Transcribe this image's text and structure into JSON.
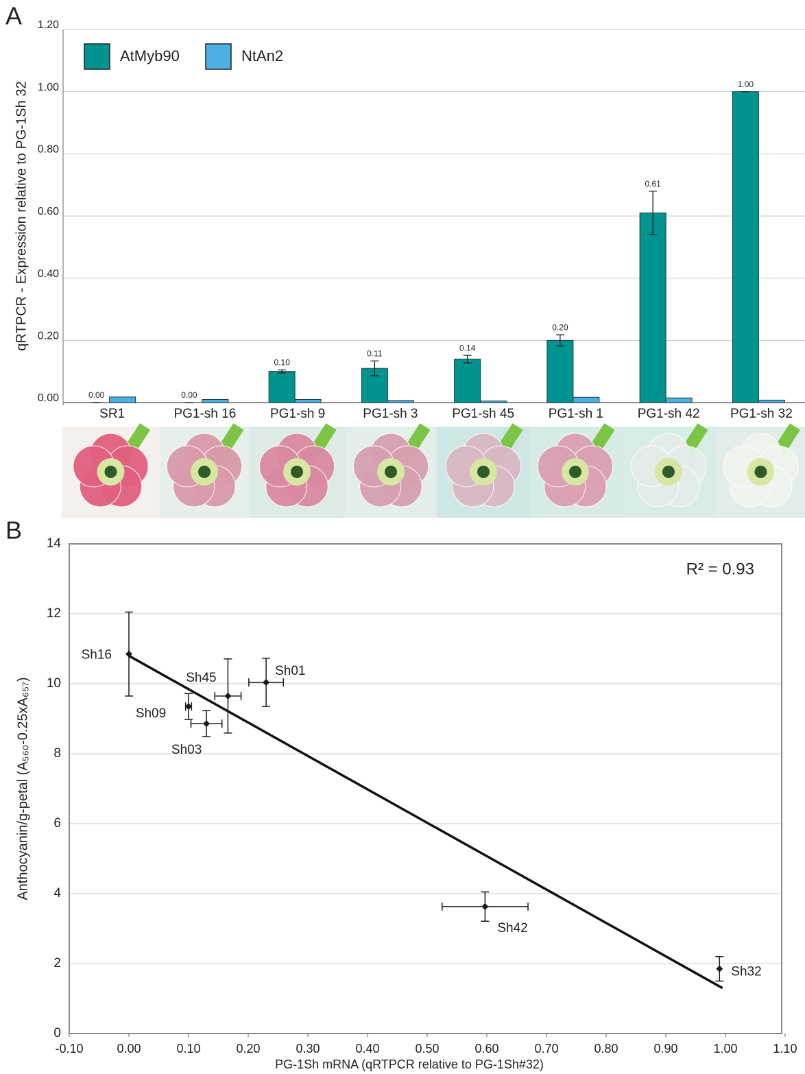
{
  "chart_data": [
    {
      "type": "bar",
      "label": "A",
      "ylabel": "qRTPCR - Expression relative to PG-1Sh 32",
      "categories": [
        "SR1",
        "PG1-sh 16",
        "PG1-sh 9",
        "PG1-sh 3",
        "PG1-sh 45",
        "PG1-sh 1",
        "PG1-sh 42",
        "PG1-sh 32"
      ],
      "series": [
        {
          "name": "AtMyb90",
          "color": "#00938f",
          "values": [
            0,
            0,
            0.1,
            0.11,
            0.14,
            0.2,
            0.61,
            1
          ],
          "value_labels": [
            "0.00",
            "0.00",
            "0.10",
            "0.11",
            "0.14",
            "0.20",
            "0.61",
            "1.00"
          ],
          "errors": [
            0,
            0,
            0.005,
            0.024,
            0.012,
            0.018,
            0.07,
            0
          ]
        },
        {
          "name": "NtAn2",
          "color": "#4db0e3",
          "values": [
            0.018,
            0.01,
            0.01,
            0.007,
            0.005,
            0.017,
            0.015,
            0.008
          ]
        }
      ],
      "ylim": [
        0,
        1.2
      ],
      "yticks": [
        {
          "value": 0,
          "label": "0.00"
        },
        {
          "value": 0.2,
          "label": "0.20"
        },
        {
          "value": 0.4,
          "label": "0.40"
        },
        {
          "value": 0.6,
          "label": "0.60"
        },
        {
          "value": 0.8,
          "label": "0.80"
        },
        {
          "value": 1,
          "label": "1.00"
        },
        {
          "value": 1.2,
          "label": "1.20"
        }
      ],
      "grid": true,
      "legend": "upper left"
    },
    {
      "type": "scatter",
      "label": "B",
      "xlabel": "PG-1Sh mRNA (qRTPCR relative to PG-1Sh#32)",
      "ylabel": "Anthocyanin/g-petal  (A₅₆₀-0.25xA₆₅₇)",
      "annotation": "R² = 0.93",
      "point_labels": [
        "Sh16",
        "Sh09",
        "Sh03",
        "Sh45",
        "Sh01",
        "Sh42",
        "Sh32"
      ],
      "x": [
        0,
        0.1,
        0.13,
        0.166,
        0.23,
        0.597,
        0.99
      ],
      "values": [
        10.85,
        9.35,
        8.86,
        9.65,
        10.04,
        3.63,
        1.85
      ],
      "x_errors": [
        0,
        0.005,
        0.026,
        0.022,
        0.029,
        0.072,
        0
      ],
      "errors": [
        1.2,
        0.37,
        0.37,
        1.06,
        0.69,
        0.42,
        0.35
      ],
      "color": "#1a1a1a",
      "trendline": {
        "x": [
          0,
          0.995
        ],
        "y": [
          10.8,
          1.3
        ]
      },
      "xlim": [
        -0.1,
        1.1
      ],
      "ylim": [
        0,
        14
      ],
      "xticks": [
        {
          "value": -0.1,
          "label": "-0.10"
        },
        {
          "value": 0,
          "label": "0.00"
        },
        {
          "value": 0.1,
          "label": "0.10"
        },
        {
          "value": 0.2,
          "label": "0.20"
        },
        {
          "value": 0.3,
          "label": "0.30"
        },
        {
          "value": 0.4,
          "label": "0.40"
        },
        {
          "value": 0.5,
          "label": "0.50"
        },
        {
          "value": 0.6,
          "label": "0.60"
        },
        {
          "value": 0.7,
          "label": "0.70"
        },
        {
          "value": 0.8,
          "label": "0.80"
        },
        {
          "value": 0.9,
          "label": "0.90"
        },
        {
          "value": 1,
          "label": "1.00"
        },
        {
          "value": 1.1,
          "label": "1.10"
        }
      ],
      "yticks": [
        0,
        2,
        4,
        6,
        8,
        10,
        12,
        14
      ],
      "grid": true
    }
  ]
}
